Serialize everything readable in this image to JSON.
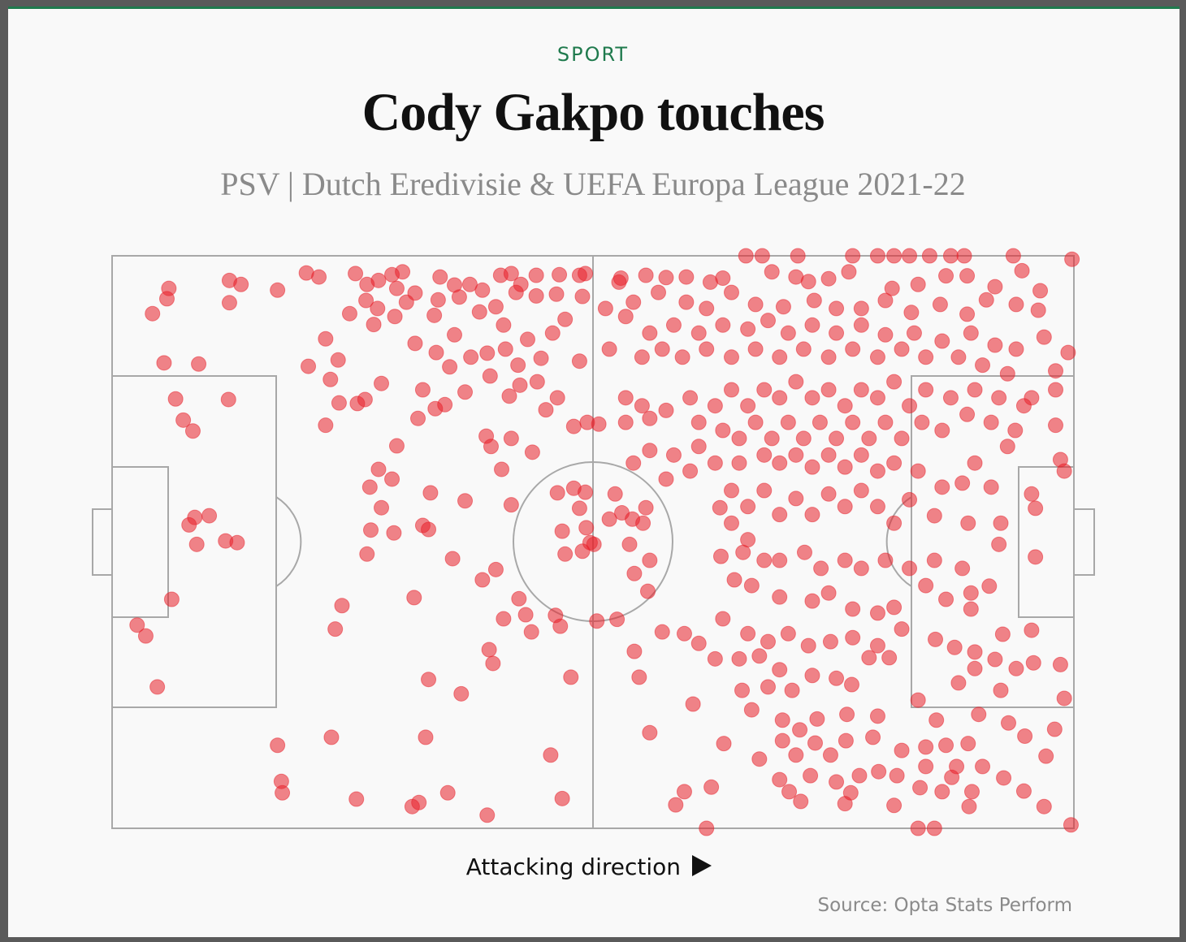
{
  "chart_data": {
    "type": "scatter",
    "kicker": "SPORT",
    "title": "Cody Gakpo touches",
    "subtitle": "PSV | Dutch Eredivisie & UEFA Europa League 2021-22",
    "x_label": "Attacking direction",
    "source": "Source: Opta Stats Perform",
    "color": "#e8202a",
    "xlim": [
      0,
      100
    ],
    "ylim": [
      0,
      100
    ],
    "x": [
      5.9,
      5.7,
      4.2,
      12.2,
      13.4,
      12.2,
      17.2,
      20.2,
      21.5,
      5.4,
      9,
      6.6,
      12.1,
      7.4,
      8.4,
      8.6,
      10.1,
      8,
      8.8,
      11.8,
      13,
      6.2,
      2.6,
      3.5,
      4.7,
      17.2,
      17.6,
      17.7,
      22.8,
      25.4,
      31.2,
      31.9,
      34.9,
      39,
      32.6,
      32.9,
      36.3,
      45.6,
      46.8,
      47.7,
      23.2,
      23.9,
      31.4,
      22.2,
      22.2,
      20.4,
      23.5,
      22.7,
      23.6,
      25.5,
      26.3,
      28,
      26.8,
      28,
      26.9,
      29.3,
      26.5,
      27.7,
      29.6,
      29.1,
      33.1,
      32.3,
      32.9,
      35.4,
      36.7,
      38.5,
      39.9,
      40.7,
      39.2,
      39.6,
      43,
      43.6,
      46.1,
      46.6,
      41.5,
      42.3,
      25.3,
      26.5,
      27.7,
      29.1,
      30.2,
      29.6,
      31.5,
      34.1,
      35.6,
      37.2,
      38.5,
      40.4,
      41.5,
      42.5,
      44.1,
      46.5,
      48.6,
      49.2,
      26.4,
      27.6,
      29.4,
      30.6,
      33.5,
      36.1,
      38.2,
      39.9,
      42,
      44.1,
      46.2,
      48.9,
      24.7,
      27.2,
      33.9,
      40.7,
      35.6,
      37.3,
      39,
      40.9,
      43.2,
      45.8,
      47.1,
      31.5,
      33.7,
      35.1,
      39.3,
      42.2,
      44.2,
      46.3,
      48.6,
      44.6,
      32.3,
      34.6,
      36.7,
      41.3,
      42.4,
      45.1,
      31.8,
      33.6,
      38.9,
      41.5,
      43.7,
      40.5,
      48,
      50.6,
      49.4,
      39.4,
      46.3,
      48,
      49.2,
      48.6,
      52.3,
      53,
      54.1,
      55.5,
      55.2,
      51.7,
      46.8,
      49.3,
      50.1,
      49.7,
      48.9,
      47.1,
      53.8,
      55.9,
      54.3,
      55.7,
      50.4,
      52.5,
      54.3,
      54.8,
      55.9,
      59.5,
      58.6,
      61.8,
      62.3,
      60.4,
      57.2,
      59.5,
      52.9,
      52.7,
      55.5,
      57.6,
      59.7,
      62.2,
      63.5,
      65.9,
      67.6,
      68.6,
      71.3,
      71.1,
      72.4,
      74.5,
      77,
      76.6,
      79.6,
      81.3,
      82.9,
      85,
      87.2,
      88.6,
      93.7,
      99.8,
      81.1,
      83.8,
      86.7,
      88.9,
      91.8,
      94.6,
      96.5,
      96.3,
      94,
      90.9,
      88.9,
      86.1,
      83.1,
      80.4,
      77.9,
      75.3,
      73,
      69.8,
      66.9,
      64.4,
      61.8,
      59.7,
      56.8,
      54.2,
      51.3,
      53.4,
      55.9,
      58.4,
      61,
      63.5,
      66.1,
      68.2,
      70.3,
      72.8,
      75.3,
      77.9,
      80.4,
      83.4,
      86.3,
      89.3,
      91.8,
      94,
      96.9,
      99.4,
      98.1,
      98.1,
      95.6,
      93.1,
      90.5,
      88,
      84.6,
      82.1,
      79.6,
      77,
      74.5,
      71.9,
      69.4,
      66.9,
      64.4,
      61.8,
      59.3,
      57.2,
      55.1,
      51.7,
      53.4,
      55.1,
      53.4,
      55.9,
      57.6,
      60.1,
      61,
      62.7,
      64.4,
      66.1,
      67.8,
      69.4,
      71.1,
      72.8,
      74.5,
      76.2,
      77.9,
      79.6,
      81.3,
      82.9,
      84.6,
      87.2,
      89.7,
      92.2,
      94.8,
      98.1,
      93.9,
      91.4,
      88.9,
      86.3,
      84.2,
      82.1,
      80.4,
      78.7,
      77,
      75.3,
      73.6,
      71.9,
      70.3,
      68.6,
      66.9,
      65.2,
      63.5,
      61,
      58.4,
      55.9,
      54.2,
      57.6,
      60.1,
      62.7,
      65.2,
      67.8,
      69.4,
      71.1,
      72.8,
      74.5,
      76.2,
      77.9,
      79.6,
      81.3,
      83.8,
      86.3,
      88.4,
      91.4,
      93.1,
      89.7,
      98.6,
      99,
      95.6,
      96,
      92.4,
      89,
      85.5,
      82.9,
      81.3,
      79.6,
      77.9,
      76.2,
      74.5,
      72.8,
      71.1,
      69.4,
      67.8,
      66.1,
      64.4,
      63.2,
      64.4,
      66.1,
      63.3,
      65.6,
      67.8,
      69.4,
      72,
      73.7,
      76.2,
      77.9,
      80.4,
      82.9,
      85.5,
      88.4,
      92.2,
      96,
      64.7,
      66.5,
      69.4,
      72.8,
      74.5,
      77,
      79.6,
      81.3,
      84.6,
      86.7,
      89.3,
      91.2,
      89.3,
      63.5,
      66.1,
      68.2,
      70.3,
      72.4,
      74.7,
      77,
      79.6,
      82.1,
      85.6,
      87.6,
      89.7,
      92.6,
      95.6,
      61,
      62.7,
      65.2,
      67.3,
      69.4,
      72.8,
      75.3,
      78.7,
      80.8,
      88,
      89.7,
      91.8,
      94,
      95.8,
      98.6,
      92.4,
      99,
      65.5,
      68.2,
      70.7,
      76.9,
      66.5,
      69.7,
      73.3,
      76.4,
      79.6,
      83.8,
      85.7,
      90.1,
      93.2,
      63.6,
      69.7,
      71.5,
      73.1,
      76.3,
      79.1,
      82.1,
      84.6,
      86.7,
      89,
      94.9,
      98,
      97.1,
      67.3,
      71.1,
      74.7,
      79.7,
      84.6,
      87.8,
      90.5,
      69.4,
      72.6,
      75.3,
      77.7,
      81.6,
      87.3,
      92.7,
      70.4,
      76.8,
      84,
      86.3,
      89.4,
      94.8,
      71.6,
      76.2,
      81.3,
      89.1,
      96.9,
      83.8,
      85.5,
      99.7
    ],
    "values": [
      94.3,
      92.5,
      89.9,
      95.7,
      95,
      91.8,
      94,
      97,
      96.3,
      81.3,
      81.1,
      75,
      74.9,
      71.3,
      69.4,
      54.3,
      54.6,
      53,
      49.6,
      50.2,
      49.9,
      40,
      35.5,
      33.6,
      24.7,
      14.5,
      8.2,
      6.2,
      15.9,
      5.1,
      3.8,
      4.5,
      6.2,
      2.3,
      15.9,
      26,
      23.5,
      12.8,
      5.2,
      26.4,
      34.8,
      38.9,
      40.3,
      70.4,
      85.5,
      80.7,
      81.8,
      78.4,
      74.3,
      74.2,
      74.9,
      77.7,
      59.6,
      56,
      52.1,
      51.6,
      47.9,
      62.7,
      66.8,
      61,
      58.6,
      52.9,
      52.2,
      47.1,
      57.2,
      43.4,
      45.2,
      36.6,
      31.2,
      28.8,
      37.3,
      34.3,
      37.2,
      35.3,
      56.5,
      40.1,
      96.9,
      95,
      95.7,
      96.7,
      97.2,
      94.3,
      93.5,
      96.3,
      94.9,
      95,
      94,
      96.6,
      96.9,
      95,
      96.6,
      96.7,
      96.6,
      96.9,
      92.2,
      90.8,
      89.4,
      91.9,
      89.6,
      92.8,
      90.2,
      91.1,
      93.6,
      93,
      93.3,
      92.9,
      89.9,
      88,
      92.3,
      87.9,
      86.2,
      82.3,
      83,
      83.7,
      85.4,
      86.5,
      88.9,
      84.7,
      83.1,
      80.6,
      79,
      80.9,
      78,
      75.2,
      81.6,
      82.1,
      76.6,
      74,
      76.2,
      75.5,
      77.4,
      73.1,
      71.6,
      73.3,
      68.5,
      68.1,
      65.7,
      62.7,
      70.2,
      70.6,
      70.9,
      66.7,
      58.6,
      59.4,
      58.7,
      55.9,
      58.4,
      55.1,
      54,
      56,
      53.3,
      54,
      51.9,
      52.5,
      49.6,
      49.9,
      48.4,
      47.9,
      49.6,
      46.8,
      44.5,
      41.4,
      36.2,
      36.5,
      30.9,
      26.4,
      16.7,
      6.4,
      4.1,
      0,
      7.2,
      21.7,
      34.3,
      34,
      96.1,
      95.4,
      96.6,
      96.2,
      96.3,
      95.4,
      96.1,
      100,
      100,
      97.2,
      100,
      96.3,
      95.5,
      96,
      100,
      97.2,
      100,
      100,
      100,
      100,
      100,
      100,
      100,
      99.4,
      94.3,
      95,
      96.5,
      96.5,
      94.6,
      97.4,
      93.9,
      90.5,
      91.5,
      92.3,
      89.8,
      91.5,
      90.1,
      92.2,
      90.8,
      90.8,
      92.2,
      91.1,
      91.5,
      93.6,
      90.8,
      91.9,
      93.6,
      91.9,
      90.8,
      89.4,
      86.5,
      87.9,
      86.5,
      87.9,
      87.2,
      88.7,
      86.5,
      87.9,
      86.5,
      87.9,
      86.2,
      86.5,
      85.1,
      86.5,
      84.4,
      83.7,
      85.8,
      83.1,
      79.9,
      76.6,
      75.2,
      79.4,
      80.9,
      82.3,
      82.3,
      83.7,
      82.3,
      83.7,
      82.3,
      83.7,
      82.3,
      83.7,
      82.3,
      83.7,
      82.3,
      83.7,
      82.3,
      83.7,
      75.2,
      73.8,
      70.9,
      71.6,
      73,
      75.2,
      70.9,
      73.8,
      76.6,
      73.8,
      76.6,
      75.2,
      78,
      75.2,
      76.6,
      73.8,
      76.6,
      75.2,
      78,
      73.8,
      76.6,
      75.2,
      76.6,
      75.2,
      73.8,
      70.4,
      69.5,
      70.9,
      72.3,
      69.5,
      70.9,
      68.1,
      70.9,
      68.1,
      70.9,
      68.1,
      70.9,
      68.1,
      70.9,
      68.1,
      70.9,
      68.1,
      69.5,
      66.7,
      65.2,
      66,
      63.8,
      61,
      62.4,
      63.8,
      63.8,
      65.2,
      63.8,
      65.2,
      63.1,
      65.2,
      63.1,
      65.2,
      62.4,
      63.8,
      62.4,
      59.6,
      60.3,
      59.6,
      66.7,
      63.8,
      64.4,
      62.4,
      58.4,
      55.9,
      53.3,
      53.3,
      54.6,
      57.4,
      53.3,
      56.2,
      59,
      56.2,
      58.4,
      54.8,
      57.6,
      54.8,
      59,
      56.2,
      59,
      56,
      53.3,
      50.4,
      47.5,
      48.2,
      46.8,
      46.8,
      48.2,
      45.4,
      46.8,
      45.4,
      46.8,
      45.4,
      46.8,
      45.4,
      49.6,
      47.4,
      43.4,
      42.4,
      40.4,
      39.7,
      41.1,
      38.3,
      37.6,
      38.6,
      42.4,
      40,
      41.1,
      42.3,
      38.3,
      36.6,
      34,
      32.6,
      34,
      31.9,
      32.6,
      33.3,
      31.9,
      34.8,
      33,
      31.6,
      30.8,
      33.9,
      34.6,
      32.3,
      29.6,
      29.6,
      30.1,
      27.7,
      26.7,
      26.2,
      29.8,
      29.8,
      25.4,
      27.9,
      29.5,
      27.9,
      28.9,
      28.6,
      24.1,
      22.7,
      24.1,
      24.7,
      24.1,
      25.1,
      20.7,
      18.9,
      19.1,
      19.9,
      19.6,
      22.4,
      18.9,
      19.9,
      18.4,
      14.8,
      15.3,
      17.2,
      14.9,
      15.3,
      15.9,
      13.6,
      14.2,
      14.5,
      14.8,
      16.1,
      17.3,
      12.6,
      12.1,
      12.8,
      12.8,
      9.9,
      10.8,
      10.8,
      10.8,
      8.5,
      9.2,
      8.1,
      9.2,
      9.2,
      8.9,
      8.8,
      6.4,
      6.2,
      7.1,
      6.4,
      6.4,
      6.5,
      4.7,
      4.3,
      4,
      3.8,
      3.8,
      0,
      0,
      0.6
    ]
  }
}
